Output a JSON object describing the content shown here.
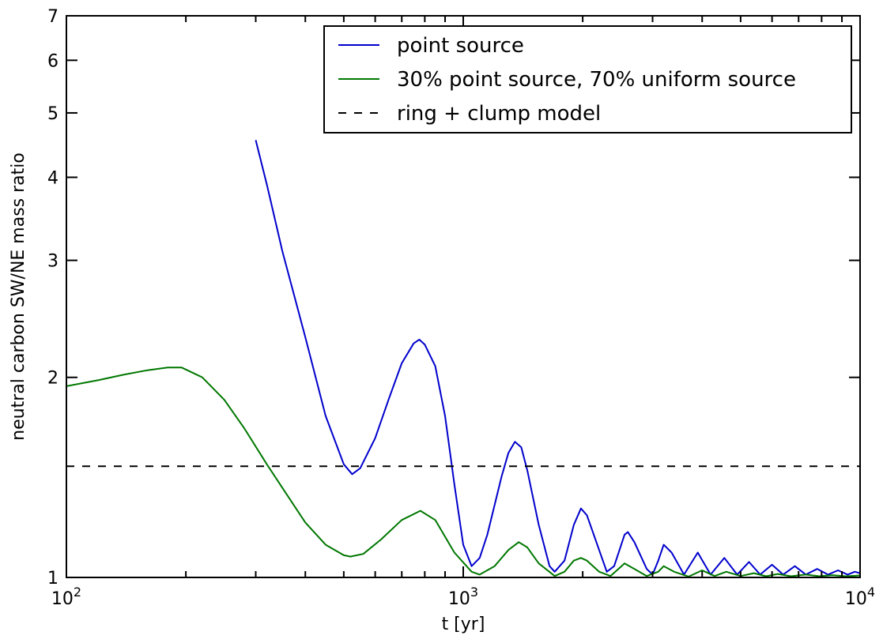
{
  "chart_data": {
    "type": "line",
    "xlabel": "t [yr]",
    "ylabel": "neutral carbon SW/NE mass ratio",
    "xscale": "log",
    "yscale": "log",
    "xlim": [
      100,
      10000
    ],
    "ylim": [
      1,
      7
    ],
    "x_ticks": [
      {
        "value": 100,
        "base": "10",
        "exp": "2"
      },
      {
        "value": 1000,
        "base": "10",
        "exp": "3"
      },
      {
        "value": 10000,
        "base": "10",
        "exp": "4"
      }
    ],
    "y_ticks": [
      {
        "value": 1,
        "label": "1"
      },
      {
        "value": 2,
        "label": "2"
      },
      {
        "value": 3,
        "label": "3"
      },
      {
        "value": 4,
        "label": "4"
      },
      {
        "value": 5,
        "label": "5"
      },
      {
        "value": 6,
        "label": "6"
      },
      {
        "value": 7,
        "label": "7"
      }
    ],
    "legend_position": "top-right",
    "series": [
      {
        "name": "point source",
        "color": "#0000cc",
        "style": "solid",
        "points": [
          [
            300,
            4.55
          ],
          [
            320,
            3.9
          ],
          [
            350,
            3.1
          ],
          [
            400,
            2.3
          ],
          [
            450,
            1.75
          ],
          [
            500,
            1.48
          ],
          [
            525,
            1.43
          ],
          [
            550,
            1.46
          ],
          [
            600,
            1.62
          ],
          [
            650,
            1.86
          ],
          [
            700,
            2.1
          ],
          [
            750,
            2.25
          ],
          [
            775,
            2.28
          ],
          [
            800,
            2.24
          ],
          [
            850,
            2.08
          ],
          [
            900,
            1.75
          ],
          [
            950,
            1.38
          ],
          [
            1000,
            1.12
          ],
          [
            1050,
            1.04
          ],
          [
            1100,
            1.07
          ],
          [
            1150,
            1.16
          ],
          [
            1250,
            1.42
          ],
          [
            1300,
            1.54
          ],
          [
            1350,
            1.6
          ],
          [
            1400,
            1.57
          ],
          [
            1450,
            1.45
          ],
          [
            1550,
            1.2
          ],
          [
            1650,
            1.04
          ],
          [
            1700,
            1.02
          ],
          [
            1800,
            1.06
          ],
          [
            1900,
            1.2
          ],
          [
            1980,
            1.27
          ],
          [
            2050,
            1.24
          ],
          [
            2200,
            1.1
          ],
          [
            2300,
            1.02
          ],
          [
            2400,
            1.04
          ],
          [
            2550,
            1.16
          ],
          [
            2600,
            1.17
          ],
          [
            2700,
            1.13
          ],
          [
            2900,
            1.03
          ],
          [
            3000,
            1.01
          ],
          [
            3100,
            1.06
          ],
          [
            3200,
            1.12
          ],
          [
            3350,
            1.09
          ],
          [
            3600,
            1.01
          ],
          [
            3900,
            1.09
          ],
          [
            4200,
            1.01
          ],
          [
            4550,
            1.07
          ],
          [
            4900,
            1.01
          ],
          [
            5250,
            1.055
          ],
          [
            5600,
            1.01
          ],
          [
            6000,
            1.045
          ],
          [
            6400,
            1.01
          ],
          [
            6850,
            1.04
          ],
          [
            7300,
            1.01
          ],
          [
            7800,
            1.03
          ],
          [
            8300,
            1.01
          ],
          [
            8800,
            1.025
          ],
          [
            9300,
            1.01
          ],
          [
            9700,
            1.02
          ],
          [
            10000,
            1.015
          ]
        ]
      },
      {
        "name": "30% point source, 70% uniform source",
        "color": "#007700",
        "style": "solid",
        "points": [
          [
            100,
            1.94
          ],
          [
            120,
            1.98
          ],
          [
            140,
            2.02
          ],
          [
            160,
            2.05
          ],
          [
            180,
            2.07
          ],
          [
            195,
            2.07
          ],
          [
            220,
            2.0
          ],
          [
            250,
            1.85
          ],
          [
            280,
            1.68
          ],
          [
            320,
            1.48
          ],
          [
            360,
            1.33
          ],
          [
            400,
            1.21
          ],
          [
            450,
            1.12
          ],
          [
            500,
            1.08
          ],
          [
            520,
            1.075
          ],
          [
            560,
            1.085
          ],
          [
            620,
            1.14
          ],
          [
            700,
            1.22
          ],
          [
            780,
            1.26
          ],
          [
            850,
            1.22
          ],
          [
            950,
            1.09
          ],
          [
            1050,
            1.02
          ],
          [
            1100,
            1.01
          ],
          [
            1200,
            1.04
          ],
          [
            1300,
            1.1
          ],
          [
            1380,
            1.13
          ],
          [
            1450,
            1.11
          ],
          [
            1550,
            1.05
          ],
          [
            1700,
            1.005
          ],
          [
            1800,
            1.02
          ],
          [
            1900,
            1.06
          ],
          [
            1980,
            1.07
          ],
          [
            2050,
            1.06
          ],
          [
            2200,
            1.02
          ],
          [
            2350,
            1.005
          ],
          [
            2550,
            1.05
          ],
          [
            2700,
            1.03
          ],
          [
            2900,
            1.005
          ],
          [
            3100,
            1.02
          ],
          [
            3200,
            1.04
          ],
          [
            3400,
            1.02
          ],
          [
            3700,
            1.003
          ],
          [
            4000,
            1.025
          ],
          [
            4300,
            1.005
          ],
          [
            4600,
            1.02
          ],
          [
            5000,
            1.005
          ],
          [
            5400,
            1.015
          ],
          [
            5800,
            1.004
          ],
          [
            6200,
            1.012
          ],
          [
            6700,
            1.004
          ],
          [
            7300,
            1.01
          ],
          [
            7900,
            1.004
          ],
          [
            8500,
            1.008
          ],
          [
            9200,
            1.004
          ],
          [
            10000,
            1.007
          ]
        ]
      },
      {
        "name": "ring + clump model",
        "color": "#000000",
        "style": "dashed",
        "points": [
          [
            100,
            1.47
          ],
          [
            10000,
            1.47
          ]
        ]
      }
    ]
  }
}
